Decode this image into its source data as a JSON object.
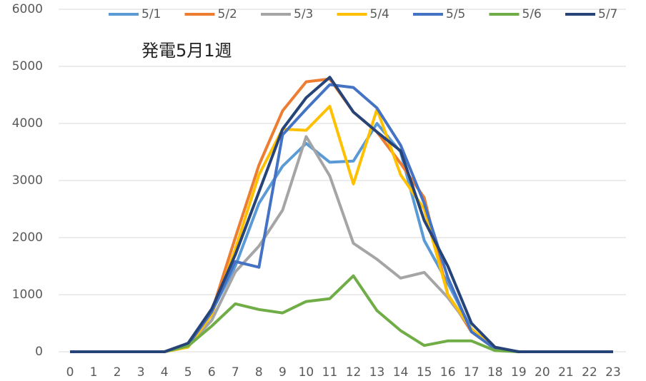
{
  "chart_data": {
    "type": "line",
    "title": "発電5月1週",
    "categories": [
      "0",
      "1",
      "2",
      "3",
      "4",
      "5",
      "6",
      "7",
      "8",
      "9",
      "10",
      "11",
      "12",
      "13",
      "14",
      "15",
      "16",
      "17",
      "18",
      "19",
      "20",
      "21",
      "22",
      "23"
    ],
    "series": [
      {
        "name": "5/1",
        "color": "#5b9bd5",
        "values": [
          0,
          0,
          0,
          0,
          0,
          100,
          700,
          1500,
          2600,
          3250,
          3650,
          3320,
          3340,
          4000,
          3500,
          1950,
          1200,
          400,
          50,
          0,
          0,
          0,
          0,
          0
        ]
      },
      {
        "name": "5/2",
        "color": "#ed7d31",
        "values": [
          0,
          0,
          0,
          0,
          0,
          130,
          700,
          2000,
          3270,
          4220,
          4730,
          4780,
          4200,
          3850,
          3300,
          2700,
          1000,
          350,
          50,
          0,
          0,
          0,
          0,
          0
        ]
      },
      {
        "name": "5/3",
        "color": "#a5a5a5",
        "values": [
          0,
          0,
          0,
          0,
          0,
          100,
          550,
          1400,
          1850,
          2480,
          3770,
          3080,
          1900,
          1620,
          1290,
          1390,
          950,
          400,
          50,
          0,
          0,
          0,
          0,
          0
        ]
      },
      {
        "name": "5/4",
        "color": "#ffc000",
        "values": [
          0,
          0,
          0,
          0,
          0,
          80,
          650,
          1800,
          3100,
          3900,
          3880,
          4300,
          2940,
          4250,
          3100,
          2500,
          1000,
          400,
          50,
          0,
          0,
          0,
          0,
          0
        ]
      },
      {
        "name": "5/5",
        "color": "#4472c4",
        "values": [
          0,
          0,
          0,
          0,
          0,
          120,
          700,
          1580,
          1480,
          3800,
          4250,
          4680,
          4630,
          4270,
          3620,
          2600,
          1300,
          350,
          50,
          0,
          0,
          0,
          0,
          0
        ]
      },
      {
        "name": "5/6",
        "color": "#70ad47",
        "values": [
          0,
          0,
          0,
          0,
          0,
          100,
          450,
          840,
          740,
          680,
          880,
          930,
          1330,
          720,
          370,
          110,
          190,
          190,
          20,
          0,
          0,
          0,
          0,
          0
        ]
      },
      {
        "name": "5/7",
        "color": "#264478",
        "values": [
          0,
          0,
          0,
          0,
          0,
          150,
          750,
          1700,
          2800,
          3900,
          4450,
          4810,
          4200,
          3850,
          3520,
          2300,
          1500,
          500,
          80,
          0,
          0,
          0,
          0,
          0
        ]
      }
    ],
    "ylim": [
      0,
      6000
    ],
    "yticks": [
      0,
      1000,
      2000,
      3000,
      4000,
      5000,
      6000
    ],
    "grid": true,
    "legend": "top"
  }
}
